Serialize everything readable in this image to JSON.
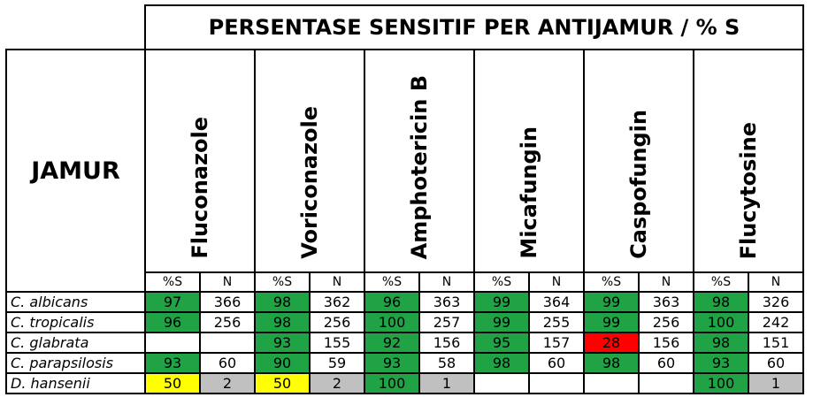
{
  "header": {
    "title": "PERSENTASE SENSITIF PER ANTIJAMUR / % S",
    "row_label": "JAMUR",
    "sub_s": "%S",
    "sub_n": "N"
  },
  "drugs": [
    "Fluconazole",
    "Voriconazole",
    "Amphotericin B",
    "Micafungin",
    "Caspofungin",
    "Flucytosine"
  ],
  "rows": [
    {
      "name": "C. albicans",
      "cells": [
        [
          "97",
          "g"
        ],
        [
          "366",
          ""
        ],
        [
          "98",
          "g"
        ],
        [
          "362",
          ""
        ],
        [
          "96",
          "g"
        ],
        [
          "363",
          ""
        ],
        [
          "99",
          "g"
        ],
        [
          "364",
          ""
        ],
        [
          "99",
          "g"
        ],
        [
          "363",
          ""
        ],
        [
          "98",
          "g"
        ],
        [
          "326",
          ""
        ]
      ]
    },
    {
      "name": "C. tropicalis",
      "cells": [
        [
          "96",
          "g"
        ],
        [
          "256",
          ""
        ],
        [
          "98",
          "g"
        ],
        [
          "256",
          ""
        ],
        [
          "100",
          "g"
        ],
        [
          "257",
          ""
        ],
        [
          "99",
          "g"
        ],
        [
          "255",
          ""
        ],
        [
          "99",
          "g"
        ],
        [
          "256",
          ""
        ],
        [
          "100",
          "g"
        ],
        [
          "242",
          ""
        ]
      ]
    },
    {
      "name": "C. glabrata",
      "cells": [
        [
          "",
          "box"
        ],
        [
          "",
          "box"
        ],
        [
          "93",
          "g"
        ],
        [
          "155",
          ""
        ],
        [
          "92",
          "g"
        ],
        [
          "156",
          ""
        ],
        [
          "95",
          "g"
        ],
        [
          "157",
          ""
        ],
        [
          "28",
          "r"
        ],
        [
          "156",
          ""
        ],
        [
          "98",
          "g"
        ],
        [
          "151",
          ""
        ]
      ]
    },
    {
      "name": "C. parapsilosis",
      "cells": [
        [
          "93",
          "g"
        ],
        [
          "60",
          ""
        ],
        [
          "90",
          "g"
        ],
        [
          "59",
          ""
        ],
        [
          "93",
          "g"
        ],
        [
          "58",
          ""
        ],
        [
          "98",
          "g"
        ],
        [
          "60",
          ""
        ],
        [
          "98",
          "g"
        ],
        [
          "60",
          ""
        ],
        [
          "93",
          "g"
        ],
        [
          "60",
          ""
        ]
      ]
    },
    {
      "name": "D. hansenii",
      "cells": [
        [
          "50",
          "y"
        ],
        [
          "2",
          "gr"
        ],
        [
          "50",
          "y"
        ],
        [
          "2",
          "gr"
        ],
        [
          "100",
          "g"
        ],
        [
          "1",
          "gr"
        ],
        [
          "",
          ""
        ],
        [
          "",
          ""
        ],
        [
          "",
          ""
        ],
        [
          "",
          ""
        ],
        [
          "100",
          "g"
        ],
        [
          "1",
          "gr"
        ]
      ]
    }
  ],
  "colors": {
    "green": "#1fa345",
    "yellow": "#ffff00",
    "red": "#ff0000",
    "grey": "#c0c0c0"
  }
}
